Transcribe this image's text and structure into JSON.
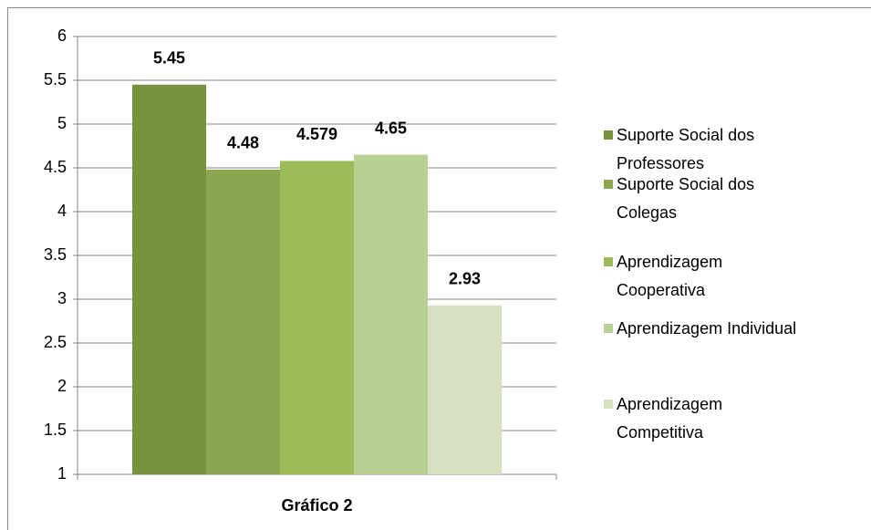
{
  "chart_data": {
    "type": "bar",
    "categories": [
      "Gráfico 2"
    ],
    "series": [
      {
        "name": "Suporte Social dos Professores",
        "color": "#76923c",
        "values": [
          5.45
        ]
      },
      {
        "name": "Suporte Social dos Colegas",
        "color": "#8aa64f",
        "values": [
          4.48
        ]
      },
      {
        "name": "Aprendizagem Cooperativa",
        "color": "#9bbb59",
        "values": [
          4.579
        ]
      },
      {
        "name": "Aprendizagem Individual",
        "color": "#b9cf93",
        "values": [
          4.65
        ]
      },
      {
        "name": "Aprendizagem Competitiva",
        "color": "#d5e0bf",
        "values": [
          2.93
        ]
      }
    ],
    "ylim": [
      1,
      6
    ],
    "yticks": [
      1,
      1.5,
      2,
      2.5,
      3,
      3.5,
      4,
      4.5,
      5,
      5.5,
      6
    ],
    "grid": true,
    "legend": "right"
  }
}
